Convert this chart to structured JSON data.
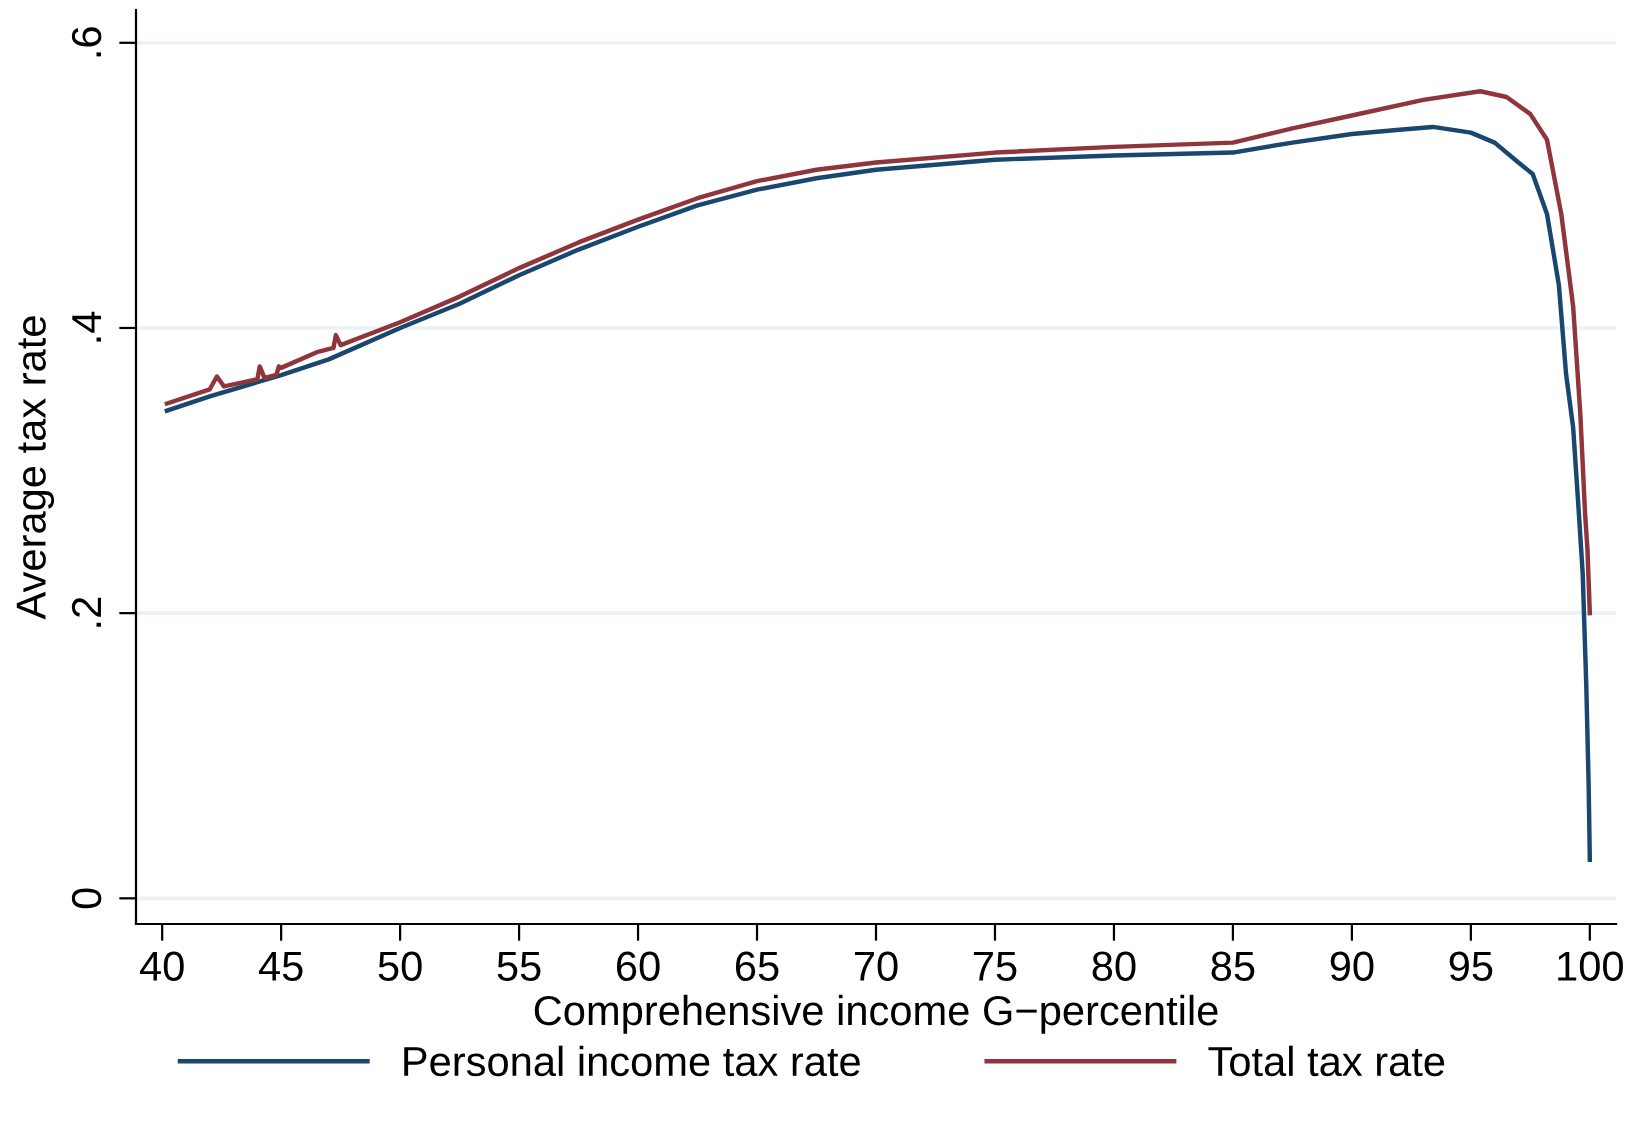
{
  "chart_data": {
    "type": "line",
    "xlabel": "Comprehensive income G−percentile",
    "ylabel": "Average tax rate",
    "xlim": [
      38.9,
      101.1
    ],
    "ylim": [
      -0.018,
      0.623
    ],
    "xticks": [
      40,
      45,
      50,
      55,
      60,
      65,
      70,
      75,
      80,
      85,
      90,
      95,
      100
    ],
    "yticks": [
      {
        "value": 0,
        "label": "0"
      },
      {
        "value": 0.2,
        "label": ".2"
      },
      {
        "value": 0.4,
        "label": ".4"
      },
      {
        "value": 0.6,
        "label": ".6"
      }
    ],
    "grid": "y",
    "legend": "bottom",
    "marker": "none",
    "line_style": "solid",
    "series": [
      {
        "name": "Personal income tax rate",
        "color": "#1a476f",
        "x": [
          40.2,
          42,
          44,
          45,
          47,
          50,
          52.5,
          55,
          57.5,
          60,
          62.5,
          65,
          67.5,
          70,
          75,
          80,
          85,
          87.5,
          90,
          92,
          93.4,
          95,
          96,
          97,
          97.6,
          98.2,
          98.7,
          99,
          99.3,
          99.5,
          99.7,
          99.85,
          99.95,
          100
        ],
        "values": [
          0.342,
          0.352,
          0.362,
          0.367,
          0.378,
          0.4,
          0.417,
          0.437,
          0.455,
          0.471,
          0.486,
          0.497,
          0.505,
          0.511,
          0.518,
          0.521,
          0.523,
          0.53,
          0.536,
          0.539,
          0.541,
          0.537,
          0.53,
          0.516,
          0.508,
          0.48,
          0.43,
          0.368,
          0.33,
          0.28,
          0.228,
          0.15,
          0.08,
          0.027
        ]
      },
      {
        "name": "Total tax rate",
        "color": "#90353b",
        "x": [
          40.2,
          42,
          42.3,
          42.6,
          44,
          44.1,
          44.3,
          44.8,
          44.9,
          45,
          46.5,
          47.2,
          47.3,
          47.5,
          50,
          52.5,
          55,
          57.5,
          60,
          62.5,
          65,
          67.5,
          70,
          75,
          80,
          85,
          87.5,
          90,
          93,
          95.4,
          96.5,
          97.5,
          98.2,
          98.8,
          99.3,
          99.6,
          99.8,
          99.9,
          100
        ],
        "values": [
          0.347,
          0.357,
          0.366,
          0.359,
          0.364,
          0.373,
          0.365,
          0.367,
          0.373,
          0.372,
          0.383,
          0.386,
          0.395,
          0.388,
          0.404,
          0.422,
          0.442,
          0.46,
          0.476,
          0.491,
          0.503,
          0.511,
          0.516,
          0.523,
          0.527,
          0.53,
          0.54,
          0.549,
          0.56,
          0.566,
          0.562,
          0.55,
          0.532,
          0.48,
          0.415,
          0.34,
          0.27,
          0.245,
          0.2
        ]
      }
    ]
  }
}
